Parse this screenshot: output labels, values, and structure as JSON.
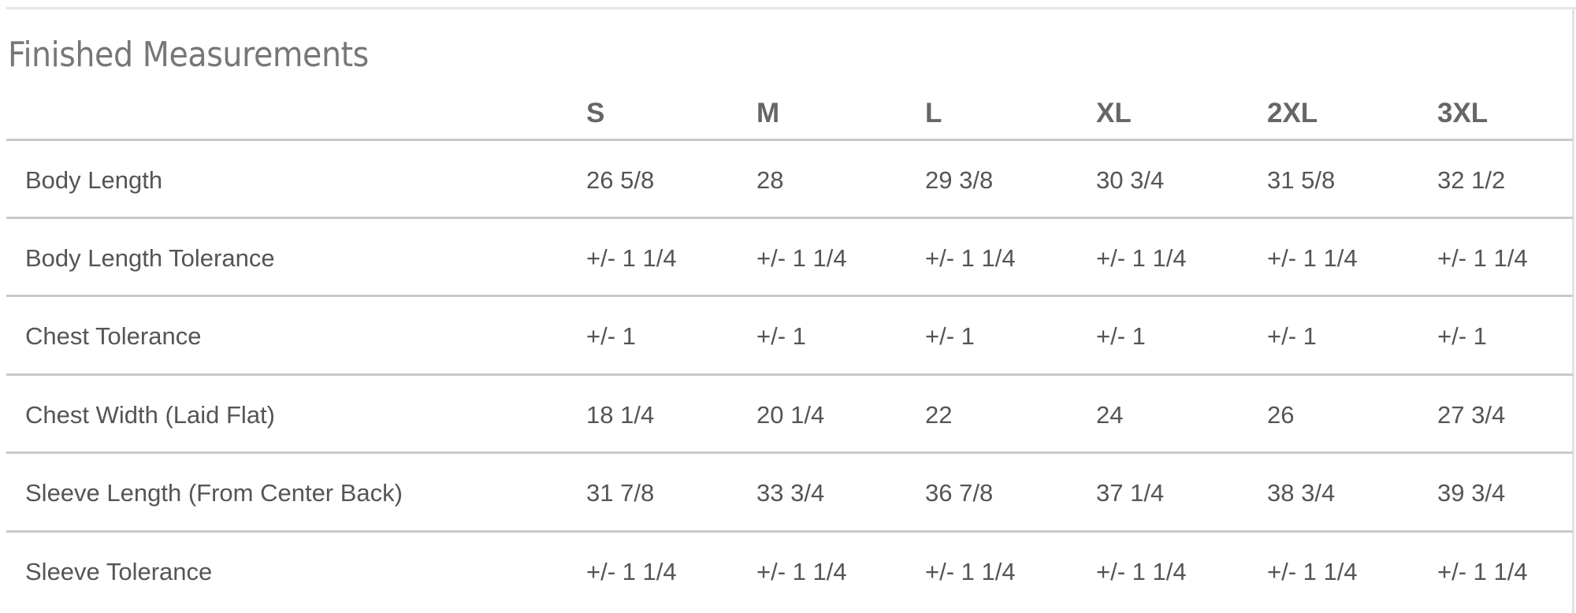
{
  "title": "Finished Measurements",
  "sizes": [
    "S",
    "M",
    "L",
    "XL",
    "2XL",
    "3XL"
  ],
  "rows": [
    {
      "label": "Body Length",
      "values": [
        "26 5/8",
        "28",
        "29 3/8",
        "30 3/4",
        "31 5/8",
        "32 1/2"
      ]
    },
    {
      "label": "Body Length Tolerance",
      "values": [
        "+/- 1 1/4",
        "+/- 1 1/4",
        "+/- 1 1/4",
        "+/- 1 1/4",
        "+/- 1 1/4",
        "+/- 1 1/4"
      ]
    },
    {
      "label": "Chest Tolerance",
      "values": [
        "+/- 1",
        "+/- 1",
        "+/- 1",
        "+/- 1",
        "+/- 1",
        "+/- 1"
      ]
    },
    {
      "label": "Chest Width (Laid Flat)",
      "values": [
        "18 1/4",
        "20 1/4",
        "22",
        "24",
        "26",
        "27 3/4"
      ]
    },
    {
      "label": "Sleeve Length (From Center Back)",
      "values": [
        "31 7/8",
        "33 3/4",
        "36 7/8",
        "37 1/4",
        "38 3/4",
        "39 3/4"
      ]
    },
    {
      "label": "Sleeve Tolerance",
      "values": [
        "+/- 1 1/4",
        "+/- 1 1/4",
        "+/- 1 1/4",
        "+/- 1 1/4",
        "+/- 1 1/4",
        "+/- 1 1/4"
      ]
    }
  ]
}
